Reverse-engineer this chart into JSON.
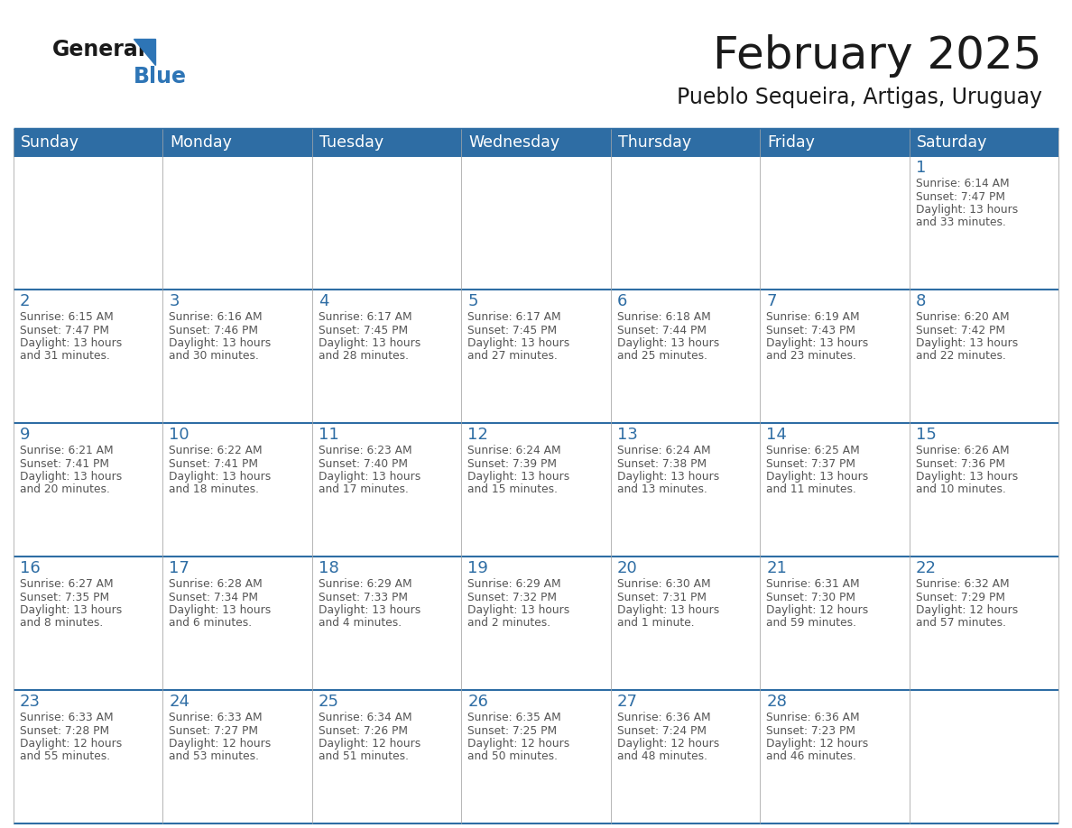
{
  "title": "February 2025",
  "subtitle": "Pueblo Sequeira, Artigas, Uruguay",
  "header_bg": "#2E6DA4",
  "header_text_color": "#FFFFFF",
  "day_headers": [
    "Sunday",
    "Monday",
    "Tuesday",
    "Wednesday",
    "Thursday",
    "Friday",
    "Saturday"
  ],
  "text_color": "#555555",
  "number_color": "#2E6DA4",
  "line_color": "#2E6DA4",
  "logo_general_color": "#1a1a1a",
  "logo_blue_color": "#2E75B6",
  "calendar": [
    [
      null,
      null,
      null,
      null,
      null,
      null,
      1
    ],
    [
      2,
      3,
      4,
      5,
      6,
      7,
      8
    ],
    [
      9,
      10,
      11,
      12,
      13,
      14,
      15
    ],
    [
      16,
      17,
      18,
      19,
      20,
      21,
      22
    ],
    [
      23,
      24,
      25,
      26,
      27,
      28,
      null
    ]
  ],
  "day_data": {
    "1": {
      "sunrise": "6:14 AM",
      "sunset": "7:47 PM",
      "daylight": "13 hours and 33 minutes."
    },
    "2": {
      "sunrise": "6:15 AM",
      "sunset": "7:47 PM",
      "daylight": "13 hours and 31 minutes."
    },
    "3": {
      "sunrise": "6:16 AM",
      "sunset": "7:46 PM",
      "daylight": "13 hours and 30 minutes."
    },
    "4": {
      "sunrise": "6:17 AM",
      "sunset": "7:45 PM",
      "daylight": "13 hours and 28 minutes."
    },
    "5": {
      "sunrise": "6:17 AM",
      "sunset": "7:45 PM",
      "daylight": "13 hours and 27 minutes."
    },
    "6": {
      "sunrise": "6:18 AM",
      "sunset": "7:44 PM",
      "daylight": "13 hours and 25 minutes."
    },
    "7": {
      "sunrise": "6:19 AM",
      "sunset": "7:43 PM",
      "daylight": "13 hours and 23 minutes."
    },
    "8": {
      "sunrise": "6:20 AM",
      "sunset": "7:42 PM",
      "daylight": "13 hours and 22 minutes."
    },
    "9": {
      "sunrise": "6:21 AM",
      "sunset": "7:41 PM",
      "daylight": "13 hours and 20 minutes."
    },
    "10": {
      "sunrise": "6:22 AM",
      "sunset": "7:41 PM",
      "daylight": "13 hours and 18 minutes."
    },
    "11": {
      "sunrise": "6:23 AM",
      "sunset": "7:40 PM",
      "daylight": "13 hours and 17 minutes."
    },
    "12": {
      "sunrise": "6:24 AM",
      "sunset": "7:39 PM",
      "daylight": "13 hours and 15 minutes."
    },
    "13": {
      "sunrise": "6:24 AM",
      "sunset": "7:38 PM",
      "daylight": "13 hours and 13 minutes."
    },
    "14": {
      "sunrise": "6:25 AM",
      "sunset": "7:37 PM",
      "daylight": "13 hours and 11 minutes."
    },
    "15": {
      "sunrise": "6:26 AM",
      "sunset": "7:36 PM",
      "daylight": "13 hours and 10 minutes."
    },
    "16": {
      "sunrise": "6:27 AM",
      "sunset": "7:35 PM",
      "daylight": "13 hours and 8 minutes."
    },
    "17": {
      "sunrise": "6:28 AM",
      "sunset": "7:34 PM",
      "daylight": "13 hours and 6 minutes."
    },
    "18": {
      "sunrise": "6:29 AM",
      "sunset": "7:33 PM",
      "daylight": "13 hours and 4 minutes."
    },
    "19": {
      "sunrise": "6:29 AM",
      "sunset": "7:32 PM",
      "daylight": "13 hours and 2 minutes."
    },
    "20": {
      "sunrise": "6:30 AM",
      "sunset": "7:31 PM",
      "daylight": "13 hours and 1 minute."
    },
    "21": {
      "sunrise": "6:31 AM",
      "sunset": "7:30 PM",
      "daylight": "12 hours and 59 minutes."
    },
    "22": {
      "sunrise": "6:32 AM",
      "sunset": "7:29 PM",
      "daylight": "12 hours and 57 minutes."
    },
    "23": {
      "sunrise": "6:33 AM",
      "sunset": "7:28 PM",
      "daylight": "12 hours and 55 minutes."
    },
    "24": {
      "sunrise": "6:33 AM",
      "sunset": "7:27 PM",
      "daylight": "12 hours and 53 minutes."
    },
    "25": {
      "sunrise": "6:34 AM",
      "sunset": "7:26 PM",
      "daylight": "12 hours and 51 minutes."
    },
    "26": {
      "sunrise": "6:35 AM",
      "sunset": "7:25 PM",
      "daylight": "12 hours and 50 minutes."
    },
    "27": {
      "sunrise": "6:36 AM",
      "sunset": "7:24 PM",
      "daylight": "12 hours and 48 minutes."
    },
    "28": {
      "sunrise": "6:36 AM",
      "sunset": "7:23 PM",
      "daylight": "12 hours and 46 minutes."
    }
  }
}
